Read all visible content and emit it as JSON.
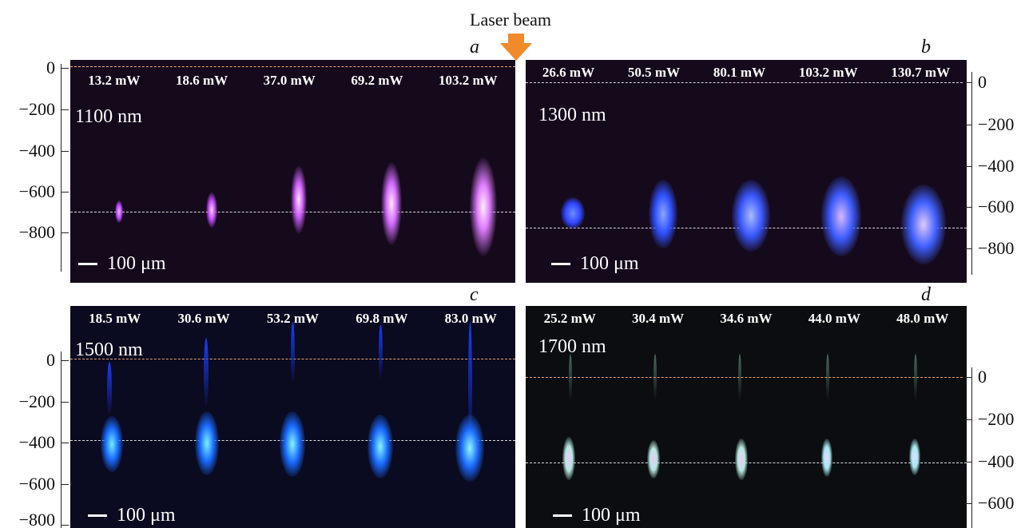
{
  "header": {
    "label": "Laser beam"
  },
  "panels": [
    {
      "id": "a",
      "letter": "a",
      "wavelength": "1100 nm",
      "scale_label": "100 μm",
      "powers": [
        "13.2 mW",
        "18.6 mW",
        "37.0 mW",
        "69.2 mW",
        "103.2 mW"
      ],
      "axis_ticks": [
        "0",
        "−200",
        "−400",
        "−600",
        "−800"
      ]
    },
    {
      "id": "b",
      "letter": "b",
      "wavelength": "1300 nm",
      "scale_label": "100 μm",
      "powers": [
        "26.6 mW",
        "50.5 mW",
        "80.1 mW",
        "103.2 mW",
        "130.7 mW"
      ],
      "axis_ticks": [
        "0",
        "−200",
        "−400",
        "−600",
        "−800"
      ]
    },
    {
      "id": "c",
      "letter": "c",
      "wavelength": "1500 nm",
      "scale_label": "100 μm",
      "powers": [
        "18.5 mW",
        "30.6 mW",
        "53.2 mW",
        "69.8 mW",
        "83.0 mW"
      ],
      "axis_ticks": [
        "0",
        "−200",
        "−400",
        "−600",
        "−800"
      ]
    },
    {
      "id": "d",
      "letter": "d",
      "wavelength": "1700 nm",
      "scale_label": "100 μm",
      "powers": [
        "25.2 mW",
        "30.4 mW",
        "34.6 mW",
        "44.0 mW",
        "48.0 mW"
      ],
      "axis_ticks": [
        "0",
        "−200",
        "−400",
        "−600"
      ]
    }
  ],
  "colors": {
    "surface_line": "#f3a56b",
    "focus_line": "#d8d8d8",
    "arrow": "#f08a2a",
    "panel_background": "#15091c"
  }
}
